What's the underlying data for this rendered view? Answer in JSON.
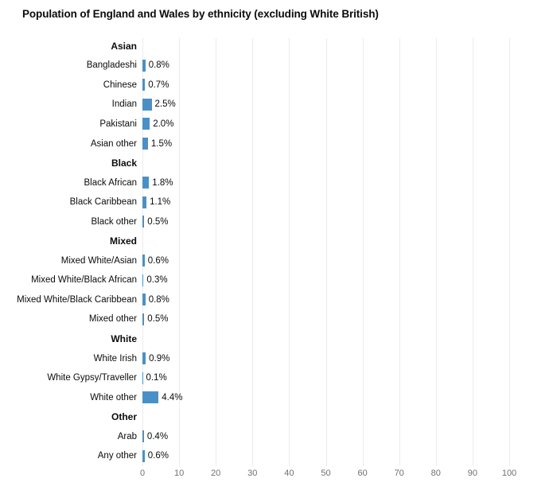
{
  "title": "Population of England and Wales by ethnicity (excluding White British)",
  "chart_data": {
    "type": "bar",
    "orientation": "horizontal",
    "title": "Population of England and Wales by ethnicity (excluding White British)",
    "xlabel": "",
    "ylabel": "",
    "unit": "%",
    "xlim": [
      0,
      100
    ],
    "x_ticks": [
      "0",
      "10",
      "20",
      "30",
      "40",
      "50",
      "60",
      "70",
      "80",
      "90",
      "100"
    ],
    "grid": true,
    "bar_color": "#4a90c8",
    "text_color": "#0b0c0c",
    "tick_color": "#707070",
    "gridline_color": "#ececec",
    "legend": "none",
    "groups": [
      {
        "name": "Asian",
        "items": [
          {
            "label": "Bangladeshi",
            "value": 0.8,
            "display": "0.8%"
          },
          {
            "label": "Chinese",
            "value": 0.7,
            "display": "0.7%"
          },
          {
            "label": "Indian",
            "value": 2.5,
            "display": "2.5%"
          },
          {
            "label": "Pakistani",
            "value": 2.0,
            "display": "2.0%"
          },
          {
            "label": "Asian other",
            "value": 1.5,
            "display": "1.5%"
          }
        ]
      },
      {
        "name": "Black",
        "items": [
          {
            "label": "Black African",
            "value": 1.8,
            "display": "1.8%"
          },
          {
            "label": "Black Caribbean",
            "value": 1.1,
            "display": "1.1%"
          },
          {
            "label": "Black other",
            "value": 0.5,
            "display": "0.5%"
          }
        ]
      },
      {
        "name": "Mixed",
        "items": [
          {
            "label": "Mixed White/Asian",
            "value": 0.6,
            "display": "0.6%"
          },
          {
            "label": "Mixed White/Black African",
            "value": 0.3,
            "display": "0.3%"
          },
          {
            "label": "Mixed White/Black Caribbean",
            "value": 0.8,
            "display": "0.8%"
          },
          {
            "label": "Mixed other",
            "value": 0.5,
            "display": "0.5%"
          }
        ]
      },
      {
        "name": "White",
        "items": [
          {
            "label": "White Irish",
            "value": 0.9,
            "display": "0.9%"
          },
          {
            "label": "White Gypsy/Traveller",
            "value": 0.1,
            "display": "0.1%"
          },
          {
            "label": "White other",
            "value": 4.4,
            "display": "4.4%"
          }
        ]
      },
      {
        "name": "Other",
        "items": [
          {
            "label": "Arab",
            "value": 0.4,
            "display": "0.4%"
          },
          {
            "label": "Any other",
            "value": 0.6,
            "display": "0.6%"
          }
        ]
      }
    ]
  }
}
